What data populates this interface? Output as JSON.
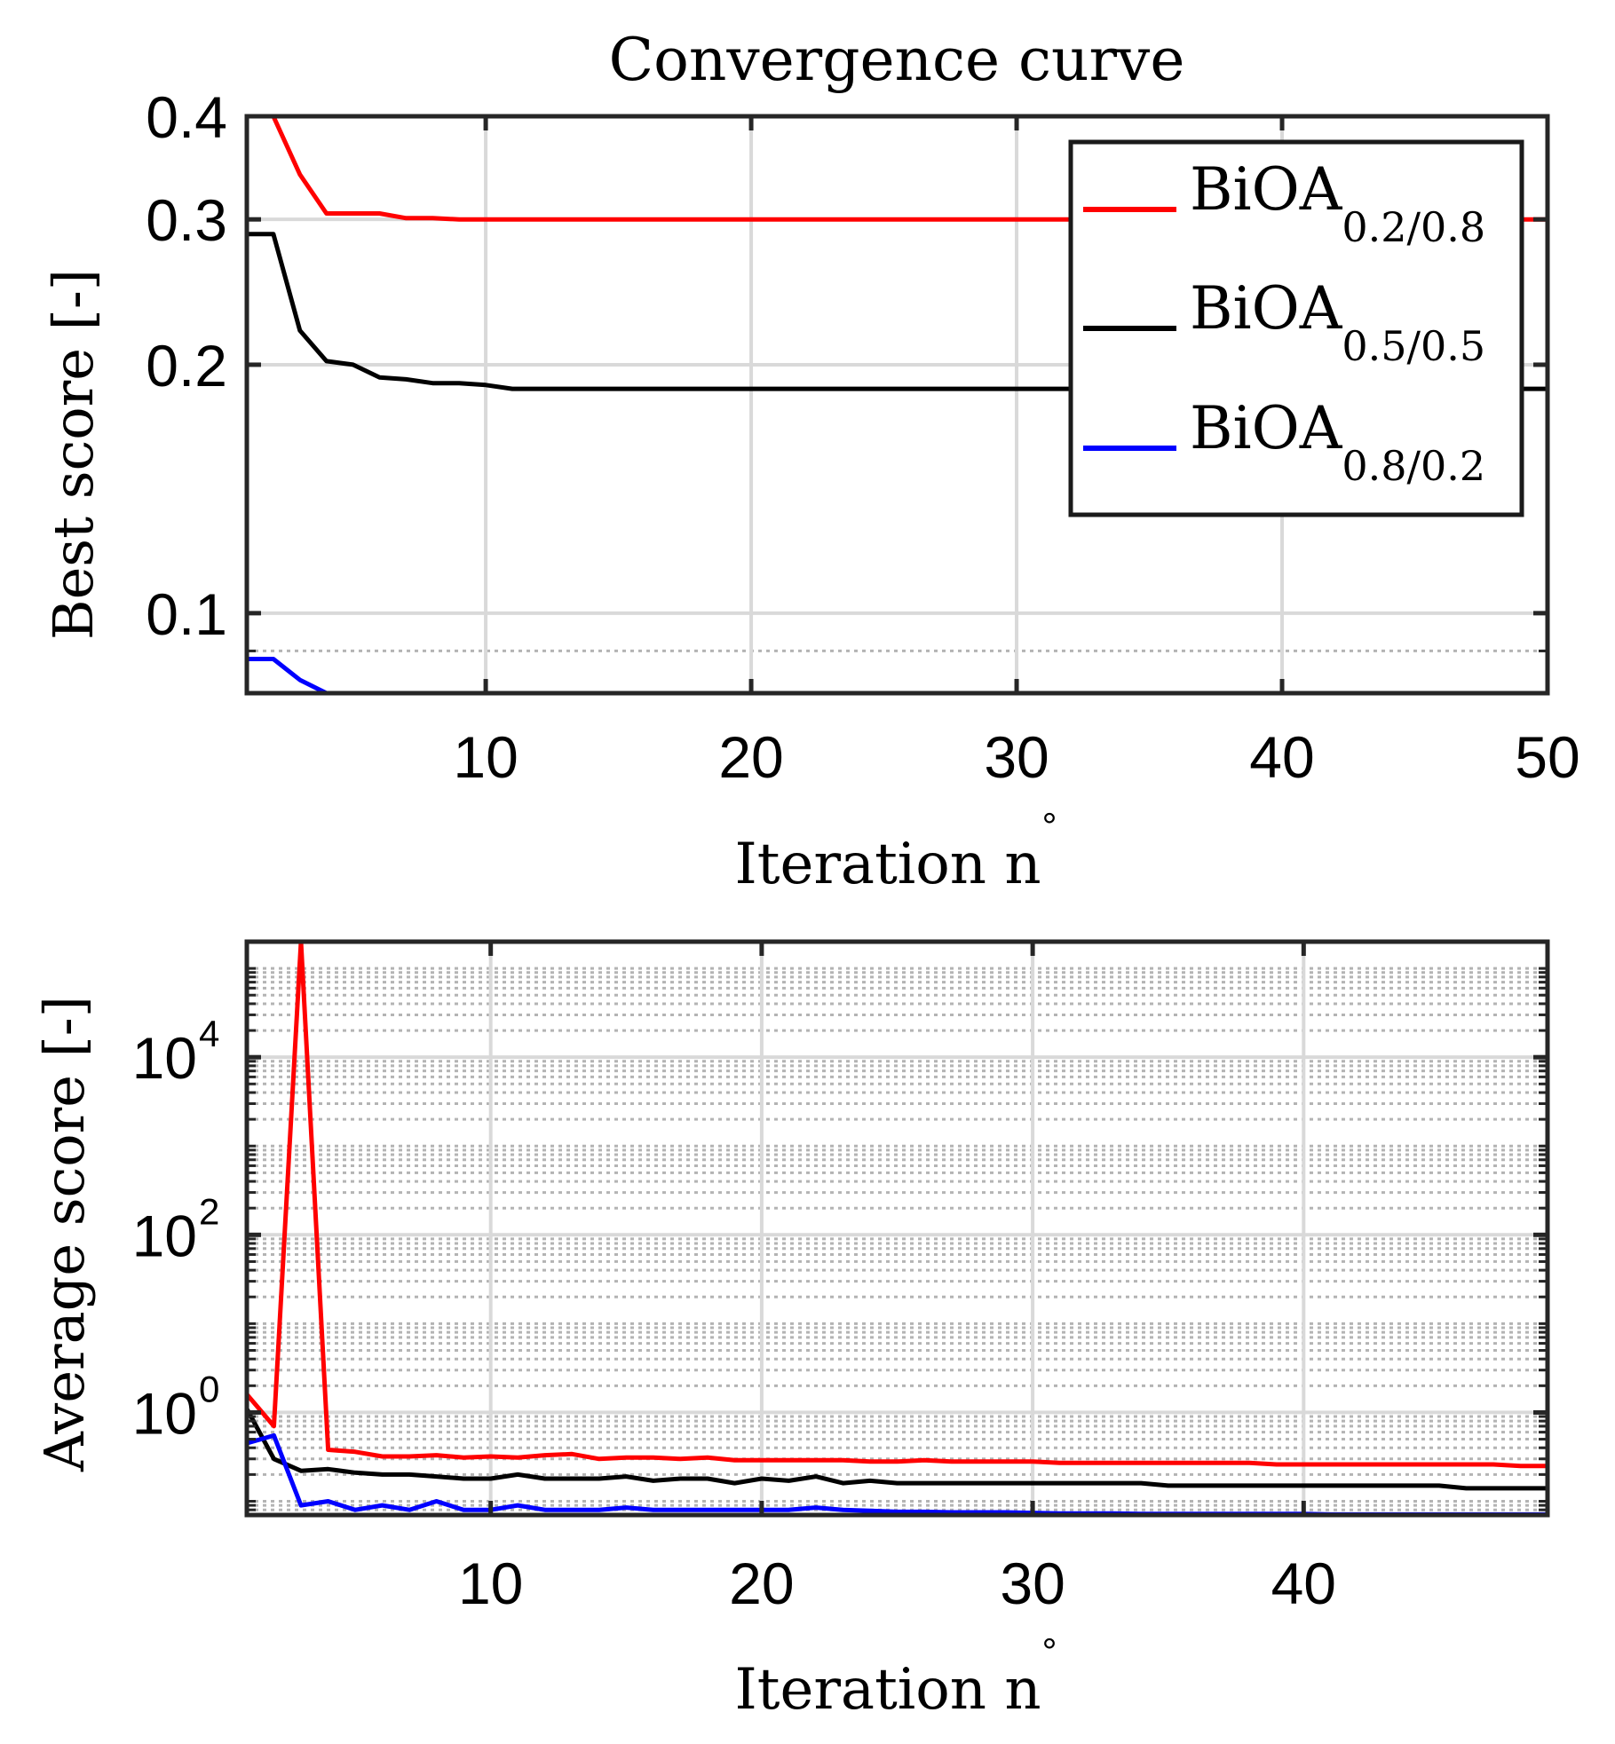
{
  "chart_data": [
    {
      "type": "line",
      "title": "Convergence curve",
      "xlabel": "Iteration n",
      "xlabel_degree": "°",
      "ylabel": "Best score  [-]",
      "yscale": "log",
      "xlim": [
        1,
        50
      ],
      "ylim": [
        0.08,
        0.4
      ],
      "xticks": [
        10,
        20,
        30,
        40,
        50
      ],
      "yticks": [
        0.1,
        0.2,
        0.3,
        0.4
      ],
      "ytick_labels": [
        "0.1",
        "0.2",
        "0.3",
        "0.4"
      ],
      "grid": true,
      "legend_position": "top-right",
      "series": [
        {
          "name": "BiOA",
          "subscript": "0.2/0.8",
          "color": "#ff0000",
          "x": [
            1,
            2,
            3,
            4,
            5,
            6,
            7,
            8,
            9,
            10,
            11,
            50
          ],
          "y": [
            0.4,
            0.4,
            0.34,
            0.305,
            0.305,
            0.305,
            0.301,
            0.301,
            0.3,
            0.3,
            0.3,
            0.3
          ]
        },
        {
          "name": "BiOA",
          "subscript": "0.5/0.5",
          "color": "#000000",
          "x": [
            1,
            2,
            3,
            4,
            5,
            6,
            7,
            8,
            9,
            10,
            11,
            50
          ],
          "y": [
            0.288,
            0.288,
            0.22,
            0.202,
            0.2,
            0.193,
            0.192,
            0.19,
            0.19,
            0.189,
            0.187,
            0.187
          ]
        },
        {
          "name": "BiOA",
          "subscript": "0.8/0.2",
          "color": "#0000ff",
          "x": [
            1,
            2,
            3,
            4,
            50
          ],
          "y": [
            0.088,
            0.088,
            0.083,
            0.08,
            0.08
          ]
        }
      ]
    },
    {
      "type": "line",
      "title": "",
      "xlabel": "Iteration n",
      "xlabel_degree": "°",
      "ylabel": "Average score [-]",
      "yscale": "log",
      "xlim": [
        1,
        49
      ],
      "ylim": [
        0.07,
        200000
      ],
      "xticks": [
        10,
        20,
        30,
        40
      ],
      "yticks": [
        1,
        100,
        10000
      ],
      "ytick_labels": [
        {
          "base": "10",
          "exp": "0"
        },
        {
          "base": "10",
          "exp": "2"
        },
        {
          "base": "10",
          "exp": "4"
        }
      ],
      "grid": true,
      "series": [
        {
          "name": "BiOA",
          "subscript": "0.2/0.8",
          "color": "#ff0000",
          "x": [
            1,
            2,
            3,
            4,
            5,
            6,
            7,
            8,
            9,
            10,
            11,
            12,
            13,
            14,
            15,
            16,
            17,
            18,
            19,
            20,
            21,
            22,
            23,
            24,
            25,
            26,
            27,
            28,
            29,
            30,
            31,
            32,
            33,
            34,
            35,
            36,
            37,
            38,
            39,
            40,
            41,
            42,
            43,
            44,
            45,
            46,
            47,
            48,
            49
          ],
          "y": [
            1.6,
            0.7,
            200000,
            0.38,
            0.36,
            0.32,
            0.32,
            0.33,
            0.31,
            0.32,
            0.31,
            0.33,
            0.34,
            0.3,
            0.31,
            0.31,
            0.3,
            0.31,
            0.29,
            0.29,
            0.29,
            0.29,
            0.29,
            0.28,
            0.28,
            0.29,
            0.28,
            0.28,
            0.28,
            0.28,
            0.27,
            0.27,
            0.27,
            0.27,
            0.27,
            0.27,
            0.27,
            0.27,
            0.26,
            0.26,
            0.26,
            0.26,
            0.26,
            0.26,
            0.26,
            0.26,
            0.26,
            0.25,
            0.25
          ]
        },
        {
          "name": "BiOA",
          "subscript": "0.5/0.5",
          "color": "#000000",
          "x": [
            1,
            2,
            3,
            4,
            5,
            6,
            7,
            8,
            9,
            10,
            11,
            12,
            13,
            14,
            15,
            16,
            17,
            18,
            19,
            20,
            21,
            22,
            23,
            24,
            25,
            26,
            27,
            28,
            29,
            30,
            31,
            32,
            33,
            34,
            35,
            36,
            37,
            38,
            39,
            40,
            41,
            42,
            43,
            44,
            45,
            46,
            47,
            48,
            49
          ],
          "y": [
            1.1,
            0.3,
            0.22,
            0.23,
            0.21,
            0.2,
            0.2,
            0.19,
            0.18,
            0.18,
            0.2,
            0.18,
            0.18,
            0.18,
            0.19,
            0.17,
            0.18,
            0.18,
            0.16,
            0.18,
            0.17,
            0.19,
            0.16,
            0.17,
            0.16,
            0.16,
            0.16,
            0.16,
            0.16,
            0.16,
            0.16,
            0.16,
            0.16,
            0.16,
            0.15,
            0.15,
            0.15,
            0.15,
            0.15,
            0.15,
            0.15,
            0.15,
            0.15,
            0.15,
            0.15,
            0.14,
            0.14,
            0.14,
            0.14
          ]
        },
        {
          "name": "BiOA",
          "subscript": "0.8/0.2",
          "color": "#0000ff",
          "x": [
            1,
            2,
            3,
            4,
            5,
            6,
            7,
            8,
            9,
            10,
            11,
            12,
            13,
            14,
            15,
            16,
            17,
            18,
            19,
            20,
            21,
            22,
            23,
            24,
            25,
            26,
            27,
            28,
            29,
            30,
            31,
            32,
            33,
            34,
            35,
            36,
            37,
            38,
            39,
            40,
            41,
            42,
            43,
            44,
            45,
            46,
            47,
            48,
            49
          ],
          "y": [
            0.45,
            0.55,
            0.09,
            0.1,
            0.08,
            0.09,
            0.08,
            0.1,
            0.08,
            0.08,
            0.09,
            0.08,
            0.08,
            0.08,
            0.085,
            0.08,
            0.08,
            0.08,
            0.08,
            0.08,
            0.08,
            0.085,
            0.08,
            0.078,
            0.076,
            0.076,
            0.075,
            0.075,
            0.075,
            0.074,
            0.073,
            0.073,
            0.073,
            0.072,
            0.072,
            0.072,
            0.072,
            0.072,
            0.072,
            0.072,
            0.071,
            0.071,
            0.071,
            0.071,
            0.071,
            0.071,
            0.071,
            0.071,
            0.071
          ]
        }
      ]
    }
  ]
}
